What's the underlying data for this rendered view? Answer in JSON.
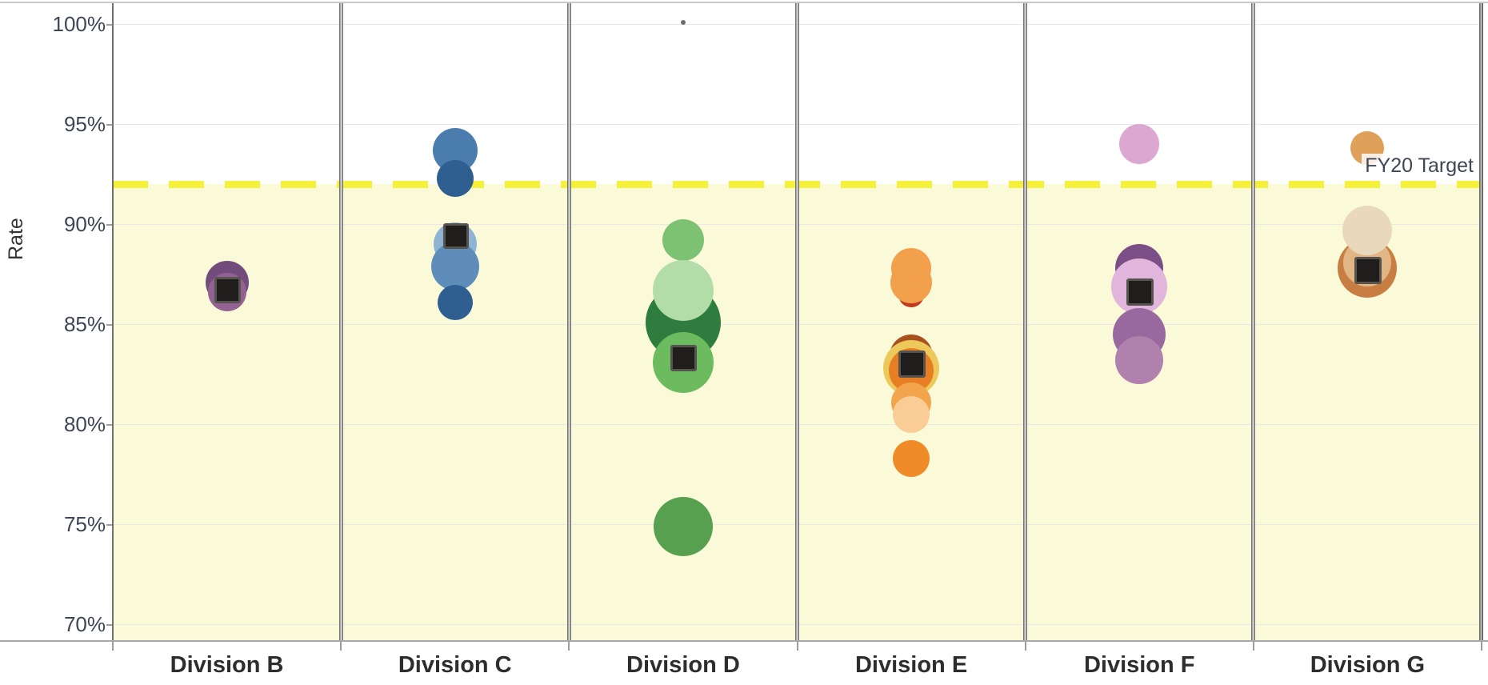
{
  "chart_data": {
    "type": "scatter",
    "title": "",
    "ylabel": "Rate",
    "xlabel": "",
    "ylim": [
      69,
      101
    ],
    "grid": true,
    "y_ticks": [
      {
        "label": "100%",
        "value": 100
      },
      {
        "label": "95%",
        "value": 95
      },
      {
        "label": "90%",
        "value": 90
      },
      {
        "label": "85%",
        "value": 85
      },
      {
        "label": "80%",
        "value": 80
      },
      {
        "label": "75%",
        "value": 75
      },
      {
        "label": "70%",
        "value": 70
      }
    ],
    "categories": [
      "Division B",
      "Division C",
      "Division D",
      "Division E",
      "Division F",
      "Division G"
    ],
    "reference_line": {
      "label": "FY20 Target",
      "value": 92,
      "line_color": "#f5f13b",
      "band_below_color": "#fafad9"
    },
    "mean_marker": {
      "shape": "square",
      "fill": "#201e1c",
      "border": "#57534e"
    },
    "divisions": [
      {
        "name": "Division B",
        "square": {
          "rate": 86.7,
          "size": 33
        },
        "bubbles": [
          {
            "rate": 87.1,
            "r": 27,
            "color": "#734c7e"
          },
          {
            "rate": 86.6,
            "r": 24,
            "color": "#946292"
          }
        ]
      },
      {
        "name": "Division C",
        "square": {
          "rate": 89.4,
          "size": 32
        },
        "bubbles": [
          {
            "rate": 93.7,
            "r": 28,
            "color": "#4a7dad"
          },
          {
            "rate": 92.3,
            "r": 23,
            "color": "#2f5f90"
          },
          {
            "rate": 89.0,
            "r": 27,
            "color": "#8fb3d2"
          },
          {
            "rate": 87.9,
            "r": 30,
            "color": "#5e8dba"
          },
          {
            "rate": 86.1,
            "r": 22,
            "color": "#2f5f90"
          }
        ]
      },
      {
        "name": "Division D",
        "square": {
          "rate": 83.3,
          "size": 33
        },
        "bubbles": [
          {
            "rate": 100.1,
            "r": 3,
            "color": "#6b6b6b"
          },
          {
            "rate": 89.2,
            "r": 26,
            "color": "#7cc272"
          },
          {
            "rate": 85.1,
            "r": 47,
            "color": "#2e7d3e"
          },
          {
            "rate": 86.7,
            "r": 38,
            "color": "#b2dca8"
          },
          {
            "rate": 83.1,
            "r": 38,
            "color": "#6cbb5f"
          },
          {
            "rate": 74.9,
            "r": 37,
            "color": "#57a04f"
          }
        ]
      },
      {
        "name": "Division E",
        "square": {
          "rate": 83.0,
          "size": 34
        },
        "bubbles": [
          {
            "rate": 86.5,
            "r": 16,
            "color": "#c23b1e"
          },
          {
            "rate": 87.8,
            "r": 25,
            "color": "#f3a04c"
          },
          {
            "rate": 87.1,
            "r": 26,
            "color": "#f3a04c"
          },
          {
            "rate": 83.4,
            "r": 27,
            "color": "#a8511f"
          },
          {
            "rate": 82.8,
            "r": 35,
            "color": "#edc95c"
          },
          {
            "rate": 82.7,
            "r": 28,
            "color": "#e87e23"
          },
          {
            "rate": 81.1,
            "r": 25,
            "color": "#f3a54d"
          },
          {
            "rate": 80.5,
            "r": 23,
            "color": "#fbcd96"
          },
          {
            "rate": 78.3,
            "r": 23,
            "color": "#f08c28"
          }
        ]
      },
      {
        "name": "Division F",
        "square": {
          "rate": 86.6,
          "size": 34
        },
        "bubbles": [
          {
            "rate": 94.0,
            "r": 25,
            "color": "#dca8d2"
          },
          {
            "rate": 87.8,
            "r": 30,
            "color": "#7b4f86"
          },
          {
            "rate": 86.9,
            "r": 35,
            "color": "#e2b5dc"
          },
          {
            "rate": 84.5,
            "r": 33,
            "color": "#99689e"
          },
          {
            "rate": 83.2,
            "r": 30,
            "color": "#af81ac"
          }
        ]
      },
      {
        "name": "Division G",
        "square": {
          "rate": 87.7,
          "size": 34
        },
        "bubbles": [
          {
            "rate": 93.8,
            "r": 21,
            "color": "#dfa059"
          },
          {
            "rate": 87.8,
            "r": 37,
            "color": "#c87e42"
          },
          {
            "rate": 88.1,
            "r": 30,
            "color": "#e2b684"
          },
          {
            "rate": 89.7,
            "r": 31,
            "color": "#ead8bc"
          }
        ]
      }
    ]
  }
}
